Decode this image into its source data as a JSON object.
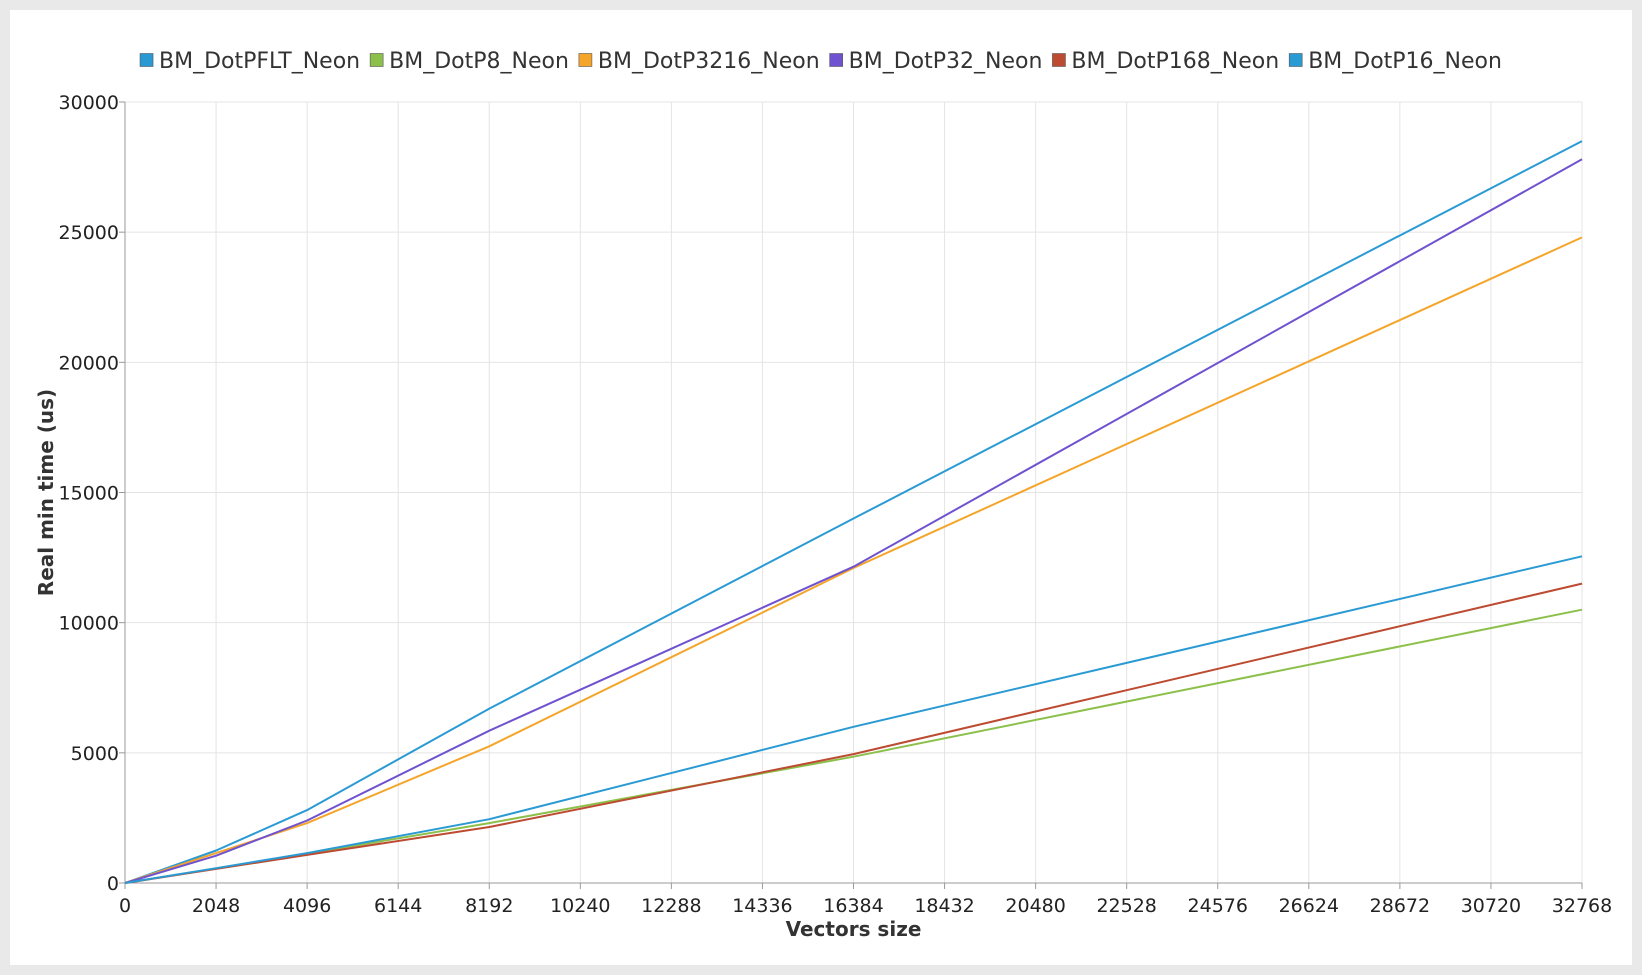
{
  "chart_data": {
    "type": "line",
    "title": "",
    "xlabel": "Vectors size",
    "ylabel": "Real min time (us)",
    "xlim": [
      0,
      32768
    ],
    "ylim": [
      0,
      30000
    ],
    "grid": true,
    "legend_position": "top",
    "x": [
      0,
      2048,
      4096,
      8192,
      16384,
      32768
    ],
    "xticks": [
      0,
      2048,
      4096,
      6144,
      8192,
      10240,
      12288,
      14336,
      16384,
      18432,
      20480,
      22528,
      24576,
      26624,
      28672,
      30720,
      32768
    ],
    "yticks": [
      0,
      5000,
      10000,
      15000,
      20000,
      25000,
      30000
    ],
    "series": [
      {
        "name": "BM_DotPFLT_Neon",
        "color": "#2a9ad4",
        "values": [
          0,
          1250,
          2800,
          6700,
          14000,
          28500
        ]
      },
      {
        "name": "BM_DotP8_Neon",
        "color": "#8cc04a",
        "values": [
          0,
          560,
          1130,
          2300,
          4850,
          10500
        ]
      },
      {
        "name": "BM_DotP3216_Neon",
        "color": "#f4a52a",
        "values": [
          0,
          1150,
          2300,
          5250,
          12100,
          24800
        ]
      },
      {
        "name": "BM_DotP32_Neon",
        "color": "#6f52cf",
        "values": [
          0,
          1050,
          2400,
          5850,
          12150,
          27800
        ]
      },
      {
        "name": "BM_DotP168_Neon",
        "color": "#bd4b32",
        "values": [
          0,
          540,
          1080,
          2150,
          4950,
          11500
        ]
      },
      {
        "name": "BM_DotP16_Neon",
        "color": "#2a9ad4",
        "values": [
          0,
          570,
          1150,
          2450,
          6000,
          12550
        ]
      }
    ]
  }
}
